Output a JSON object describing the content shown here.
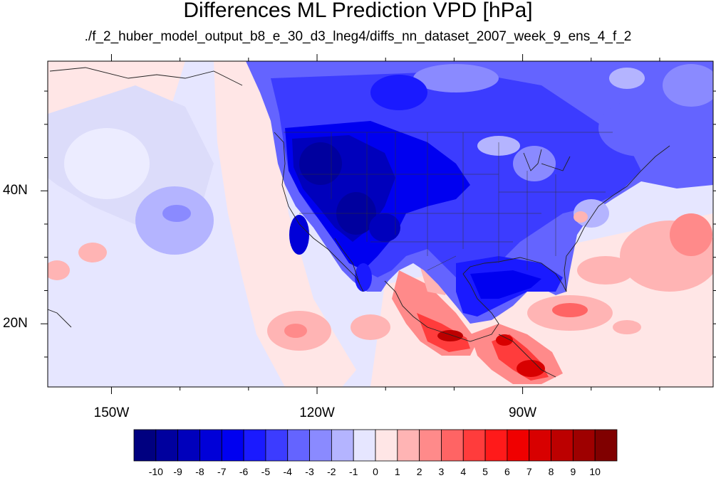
{
  "title": "Differences ML Prediction VPD [hPa]",
  "subtitle": "./f_2_huber_model_output_b8_e_30_d3_lneg4/diffs_nn_dataset_2007_week_9_ens_4_f_2",
  "map": {
    "projection": "cylindrical equidistant",
    "lon_range": [
      -159.3,
      -62.2
    ],
    "lat_range": [
      10.5,
      59.5
    ],
    "lon_ticks": [
      {
        "value": -150,
        "label": "150W"
      },
      {
        "value": -120,
        "label": "120W"
      },
      {
        "value": -90,
        "label": "90W"
      }
    ],
    "lat_ticks": [
      {
        "value": 40,
        "label": "40N"
      },
      {
        "value": 20,
        "label": "20N"
      }
    ],
    "features": [
      "coastlines",
      "national borders",
      "US state borders"
    ]
  },
  "colorbar": {
    "levels": [
      "-10",
      "-9",
      "-8",
      "-7",
      "-6",
      "-5",
      "-4",
      "-3",
      "-2",
      "-1",
      "0",
      "1",
      "2",
      "3",
      "4",
      "5",
      "6",
      "7",
      "8",
      "9",
      "10"
    ],
    "colors": [
      "#000080",
      "#00009e",
      "#0000bc",
      "#0000d8",
      "#0000f0",
      "#1a1aff",
      "#3c3cff",
      "#6464ff",
      "#8a8aff",
      "#b4b4ff",
      "#e6e6ff",
      "#ffe6e6",
      "#ffb4b4",
      "#ff8a8a",
      "#ff6464",
      "#ff3c3c",
      "#ff1a1a",
      "#f00000",
      "#d80000",
      "#bc0000",
      "#9e0000",
      "#800000"
    ]
  }
}
